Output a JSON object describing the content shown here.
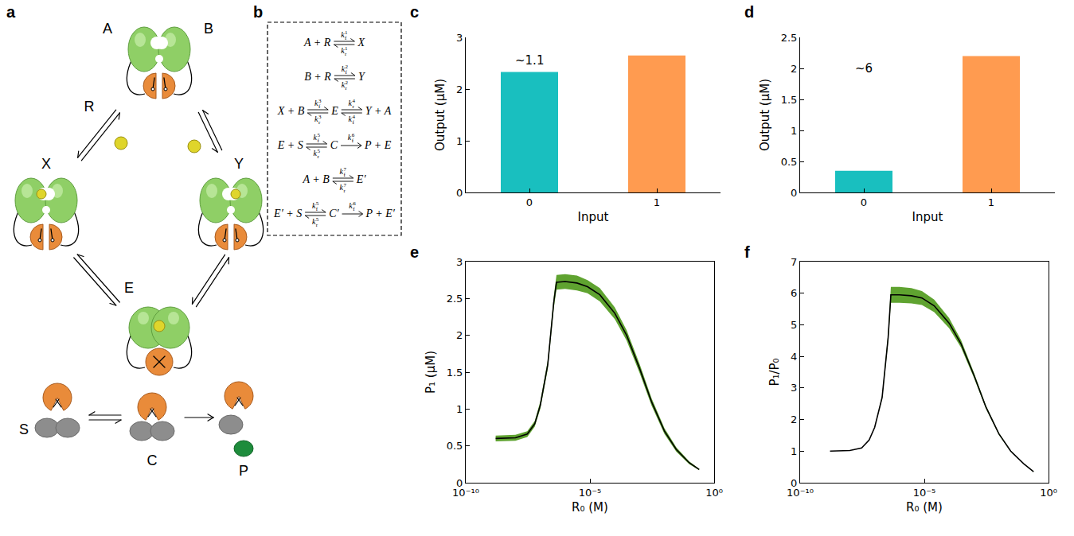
{
  "diagram": {
    "panel": "a",
    "labels": {
      "left_monomer": "A",
      "right_monomer": "B",
      "ligand": "R",
      "left_complex": "X",
      "right_complex": "Y",
      "enzyme": "E",
      "substrate": "S",
      "complex": "C",
      "product": "P"
    }
  },
  "equations": {
    "panel": "b",
    "reactions": [
      {
        "terms": [
          "A + R",
          "X"
        ],
        "arrows": [
          {
            "type": "reversible",
            "top": {
              "base": "k",
              "sub": "f",
              "sup": "1"
            },
            "bottom": {
              "base": "k",
              "sub": "r",
              "sup": "1"
            }
          }
        ]
      },
      {
        "terms": [
          "B + R",
          "Y"
        ],
        "arrows": [
          {
            "type": "reversible",
            "top": {
              "base": "k",
              "sub": "f",
              "sup": "2"
            },
            "bottom": {
              "base": "k",
              "sub": "r",
              "sup": "2"
            }
          }
        ]
      },
      {
        "terms": [
          "X + B",
          "E",
          "Y + A"
        ],
        "arrows": [
          {
            "type": "reversible",
            "top": {
              "base": "k",
              "sub": "f",
              "sup": "3"
            },
            "bottom": {
              "base": "k",
              "sub": "r",
              "sup": "3"
            }
          },
          {
            "type": "reversible",
            "top": {
              "base": "k",
              "sub": "r",
              "sup": "4"
            },
            "bottom": {
              "base": "k",
              "sub": "f",
              "sup": "4"
            }
          }
        ]
      },
      {
        "terms": [
          "E + S",
          "C",
          "P + E"
        ],
        "arrows": [
          {
            "type": "reversible",
            "top": {
              "base": "k",
              "sub": "f",
              "sup": "5"
            },
            "bottom": {
              "base": "k",
              "sub": "r",
              "sup": "5"
            }
          },
          {
            "type": "forward",
            "top": {
              "base": "k",
              "sub": "f",
              "sup": "6"
            }
          }
        ]
      },
      {
        "terms": [
          "A + B",
          "E′"
        ],
        "arrows": [
          {
            "type": "reversible",
            "top": {
              "base": "k",
              "sub": "f",
              "sup": "7"
            },
            "bottom": {
              "base": "k",
              "sub": "r",
              "sup": "7"
            }
          }
        ]
      },
      {
        "terms": [
          "E′ + S",
          "C′",
          "P + E′"
        ],
        "arrows": [
          {
            "type": "reversible",
            "top": {
              "base": "k",
              "sub": "f",
              "sup": "5"
            },
            "bottom": {
              "base": "k",
              "sub": "r",
              "sup": "5"
            }
          },
          {
            "type": "forward",
            "top": {
              "base": "k",
              "sub": "f",
              "sup": "6"
            }
          }
        ]
      }
    ]
  },
  "chart_data": [
    {
      "panel": "c",
      "type": "bar",
      "categories": [
        "0",
        "1"
      ],
      "values": [
        2.33,
        2.65
      ],
      "colors": [
        "#19bfbf",
        "#ff9b50"
      ],
      "xlabel": "Input",
      "ylabel": "Output (μM)",
      "ylim": [
        0,
        3
      ],
      "yticks": [
        0,
        1,
        2,
        3
      ],
      "grid": false,
      "annotations": [
        {
          "text": "~1.1",
          "x": "0",
          "y": 2.55
        }
      ]
    },
    {
      "panel": "d",
      "type": "bar",
      "categories": [
        "0",
        "1"
      ],
      "values": [
        0.35,
        2.2
      ],
      "colors": [
        "#19bfbf",
        "#ff9b50"
      ],
      "xlabel": "Input",
      "ylabel": "Output (μM)",
      "ylim": [
        0,
        2.5
      ],
      "yticks": [
        0,
        0.5,
        1,
        1.5,
        2,
        2.5
      ],
      "grid": false,
      "annotations": [
        {
          "text": "~6",
          "x": "0",
          "y": 2.0
        }
      ]
    },
    {
      "panel": "e",
      "type": "line",
      "log": "x",
      "x": [
        1.6e-09,
        1e-08,
        3e-08,
        6e-08,
        1e-07,
        2e-07,
        3.5e-07,
        4.5e-07,
        1e-06,
        3e-06,
        8e-06,
        2.5e-05,
        0.0001,
        0.0003,
        0.001,
        0.003,
        0.01,
        0.03,
        0.1,
        0.25
      ],
      "values": [
        0.6,
        0.61,
        0.66,
        0.8,
        1.05,
        1.6,
        2.45,
        2.72,
        2.73,
        2.71,
        2.66,
        2.55,
        2.3,
        2.0,
        1.55,
        1.1,
        0.7,
        0.45,
        0.27,
        0.18
      ],
      "error": [
        0.04,
        0.04,
        0.04,
        0.04,
        0.05,
        0.06,
        0.08,
        0.1,
        0.1,
        0.1,
        0.09,
        0.09,
        0.08,
        0.07,
        0.06,
        0.05,
        0.04,
        0.03,
        0.02,
        0.01
      ],
      "color": "#000000",
      "line_style": "solid",
      "xlabel": "R₀ (M)",
      "ylabel": "P₁ (μM)",
      "xlim": [
        1e-10,
        1
      ],
      "xticks": [
        {
          "value": 1e-10,
          "label": "10⁻¹⁰"
        },
        {
          "value": 1e-05,
          "label": "10⁻⁵"
        },
        {
          "value": 1,
          "label": "10⁰"
        }
      ],
      "ylim": [
        0,
        3
      ],
      "yticks": [
        0,
        0.5,
        1,
        1.5,
        2,
        2.5,
        3
      ],
      "grid": false
    },
    {
      "panel": "f",
      "type": "line",
      "log": "x",
      "x": [
        1.6e-09,
        1e-08,
        3e-08,
        6e-08,
        1e-07,
        2e-07,
        3.5e-07,
        4.5e-07,
        1e-06,
        3e-06,
        8e-06,
        2.5e-05,
        0.0001,
        0.0003,
        0.001,
        0.003,
        0.01,
        0.03,
        0.1,
        0.25
      ],
      "values": [
        1.0,
        1.02,
        1.1,
        1.35,
        1.75,
        2.7,
        4.6,
        5.95,
        5.95,
        5.92,
        5.85,
        5.6,
        5.05,
        4.4,
        3.4,
        2.4,
        1.55,
        1.0,
        0.6,
        0.35
      ],
      "error": [
        0,
        0,
        0,
        0,
        0,
        0.05,
        0.15,
        0.25,
        0.25,
        0.24,
        0.22,
        0.2,
        0.16,
        0.12,
        0.08,
        0.05,
        0.03,
        0.02,
        0.01,
        0.01
      ],
      "color": "#000000",
      "line_style": "solid",
      "xlabel": "R₀ (M)",
      "ylabel": "P₁/P₀",
      "xlim": [
        1e-10,
        1
      ],
      "xticks": [
        {
          "value": 1e-10,
          "label": "10⁻¹⁰"
        },
        {
          "value": 1e-05,
          "label": "10⁻⁵"
        },
        {
          "value": 1,
          "label": "10⁰"
        }
      ],
      "ylim": [
        0,
        7
      ],
      "yticks": [
        0,
        1,
        2,
        3,
        4,
        5,
        6,
        7
      ],
      "grid": false
    }
  ]
}
